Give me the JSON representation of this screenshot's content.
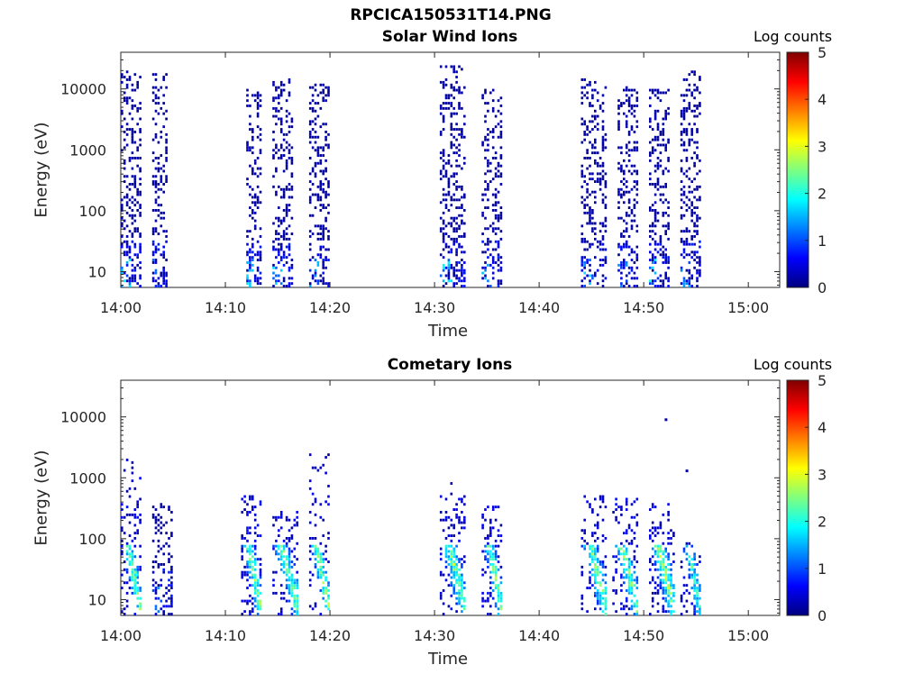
{
  "figure_title": "RPCICA150531T14.PNG",
  "colorbar_colors": [
    "#00007f",
    "#0000ff",
    "#007fff",
    "#00ffff",
    "#7fff7f",
    "#ffff00",
    "#ff7f00",
    "#ff0000",
    "#7f0000"
  ],
  "chart_data": [
    {
      "type": "heatmap",
      "title": "Solar Wind Ions",
      "xlabel": "Time",
      "ylabel": "Energy (eV)",
      "y_scale": "log",
      "ylim": [
        5.5,
        40000
      ],
      "xlim": [
        "14:00",
        "15:03"
      ],
      "x_ticks": [
        "14:00",
        "14:10",
        "14:20",
        "14:30",
        "14:40",
        "14:50",
        "15:00"
      ],
      "y_ticks": [
        "10",
        "100",
        "1000",
        "10000"
      ],
      "colorbar": {
        "label": "Log counts",
        "range": [
          0,
          5
        ],
        "ticks": [
          "0",
          "1",
          "2",
          "3",
          "4",
          "5"
        ]
      },
      "bursts": [
        {
          "start": "14:00",
          "end": "14:02",
          "emax": 20000,
          "cometary_core": false,
          "peak_log": 2.0
        },
        {
          "start": "14:03",
          "end": "14:04.5",
          "emax": 20000,
          "cometary_core": false,
          "peak_log": 1.2
        },
        {
          "start": "14:12",
          "end": "14:13.5",
          "emax": 10000,
          "cometary_core": false,
          "peak_log": 1.8
        },
        {
          "start": "14:14.5",
          "end": "14:16.5",
          "emax": 15000,
          "cometary_core": false,
          "peak_log": 1.8
        },
        {
          "start": "14:18",
          "end": "14:20",
          "emax": 12000,
          "cometary_core": false,
          "peak_log": 1.6
        },
        {
          "start": "14:30.5",
          "end": "14:33",
          "emax": 25000,
          "cometary_core": false,
          "peak_log": 2.0
        },
        {
          "start": "14:34.5",
          "end": "14:36.5",
          "emax": 10000,
          "cometary_core": false,
          "peak_log": 1.6
        },
        {
          "start": "14:44",
          "end": "14:46.5",
          "emax": 15000,
          "cometary_core": false,
          "peak_log": 1.8
        },
        {
          "start": "14:47.5",
          "end": "14:49.5",
          "emax": 12000,
          "cometary_core": false,
          "peak_log": 1.6
        },
        {
          "start": "14:50.5",
          "end": "14:52.5",
          "emax": 10000,
          "cometary_core": false,
          "peak_log": 2.0
        },
        {
          "start": "14:53.5",
          "end": "14:55.5",
          "emax": 20000,
          "cometary_core": false,
          "peak_log": 1.6
        }
      ]
    },
    {
      "type": "heatmap",
      "title": "Cometary Ions",
      "xlabel": "Time",
      "ylabel": "Energy (eV)",
      "y_scale": "log",
      "ylim": [
        5.5,
        40000
      ],
      "xlim": [
        "14:00",
        "15:03"
      ],
      "x_ticks": [
        "14:00",
        "14:10",
        "14:20",
        "14:30",
        "14:40",
        "14:50",
        "15:00"
      ],
      "y_ticks": [
        "10",
        "100",
        "1000",
        "10000"
      ],
      "colorbar": {
        "label": "Log counts",
        "range": [
          0,
          5
        ],
        "ticks": [
          "0",
          "1",
          "2",
          "3",
          "4",
          "5"
        ]
      },
      "bursts": [
        {
          "start": "14:00",
          "end": "14:02",
          "emax": 2000,
          "cometary_core": true,
          "peak_log": 3.0
        },
        {
          "start": "14:03",
          "end": "14:05",
          "emax": 400,
          "cometary_core": false,
          "peak_log": 1.5
        },
        {
          "start": "14:11.5",
          "end": "14:13.5",
          "emax": 700,
          "cometary_core": true,
          "peak_log": 3.0
        },
        {
          "start": "14:14.5",
          "end": "14:17",
          "emax": 300,
          "cometary_core": true,
          "peak_log": 3.0
        },
        {
          "start": "14:18",
          "end": "14:20",
          "emax": 2500,
          "cometary_core": true,
          "peak_log": 3.0
        },
        {
          "start": "14:30.5",
          "end": "14:33",
          "emax": 1000,
          "cometary_core": true,
          "peak_log": 3.0
        },
        {
          "start": "14:34.5",
          "end": "14:36.5",
          "emax": 400,
          "cometary_core": true,
          "peak_log": 3.0
        },
        {
          "start": "14:44",
          "end": "14:46.5",
          "emax": 500,
          "cometary_core": true,
          "peak_log": 3.0
        },
        {
          "start": "14:47",
          "end": "14:49.5",
          "emax": 500,
          "cometary_core": true,
          "peak_log": 3.0
        },
        {
          "start": "14:50.5",
          "end": "14:53",
          "emax": 400,
          "cometary_core": true,
          "peak_log": 3.2
        },
        {
          "start": "14:53.5",
          "end": "14:55.5",
          "emax": 100,
          "cometary_core": true,
          "peak_log": 2.5
        }
      ],
      "isolated_points": [
        {
          "time": "14:52",
          "energy": 9000,
          "log": 0.3
        },
        {
          "time": "14:54",
          "energy": 1300,
          "log": 0.3
        }
      ]
    }
  ]
}
